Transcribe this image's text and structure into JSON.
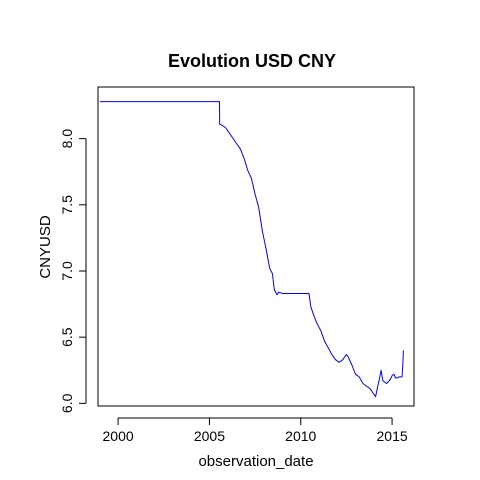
{
  "chart_data": {
    "type": "line",
    "title": "Evolution USD CNY",
    "xlabel": "observation_date",
    "ylabel": "CNYUSD",
    "xlim": [
      1998.9,
      2016.2
    ],
    "ylim": [
      5.98,
      8.39
    ],
    "x_ticks": [
      2000,
      2005,
      2010,
      2015
    ],
    "y_ticks": [
      6.0,
      6.5,
      7.0,
      7.5,
      8.0
    ],
    "x_tick_labels": [
      "2000",
      "2005",
      "2010",
      "2015"
    ],
    "y_tick_labels": [
      "6.0",
      "6.5",
      "7.0",
      "7.5",
      "8.0"
    ],
    "line_color": "#0000ff",
    "grid": false,
    "series": [
      {
        "x": [
          1999.0,
          2000.0,
          2001.0,
          2002.0,
          2003.0,
          2004.0,
          2005.0,
          2005.55,
          2005.56,
          2005.7,
          2005.9,
          2006.1,
          2006.3,
          2006.5,
          2006.7,
          2006.9,
          2007.1,
          2007.3,
          2007.5,
          2007.7,
          2007.9,
          2008.1,
          2008.3,
          2008.45,
          2008.55,
          2008.7,
          2008.8,
          2009.0,
          2009.5,
          2010.0,
          2010.45,
          2010.55,
          2010.7,
          2010.9,
          2011.1,
          2011.3,
          2011.5,
          2011.7,
          2011.9,
          2012.1,
          2012.3,
          2012.5,
          2012.6,
          2012.8,
          2013.0,
          2013.2,
          2013.4,
          2013.6,
          2013.8,
          2014.0,
          2014.1,
          2014.2,
          2014.3,
          2014.4,
          2014.5,
          2014.7,
          2014.9,
          2015.0,
          2015.1,
          2015.2,
          2015.4,
          2015.55,
          2015.6,
          2015.62
        ],
        "y": [
          8.28,
          8.28,
          8.28,
          8.28,
          8.28,
          8.28,
          8.28,
          8.28,
          8.11,
          8.1,
          8.08,
          8.04,
          8.0,
          7.96,
          7.92,
          7.85,
          7.76,
          7.7,
          7.58,
          7.48,
          7.3,
          7.17,
          7.02,
          6.98,
          6.86,
          6.82,
          6.84,
          6.83,
          6.83,
          6.83,
          6.83,
          6.73,
          6.67,
          6.6,
          6.55,
          6.47,
          6.42,
          6.37,
          6.33,
          6.31,
          6.33,
          6.37,
          6.35,
          6.29,
          6.22,
          6.2,
          6.15,
          6.13,
          6.11,
          6.07,
          6.05,
          6.12,
          6.18,
          6.25,
          6.17,
          6.15,
          6.18,
          6.21,
          6.22,
          6.19,
          6.2,
          6.2,
          6.32,
          6.4
        ]
      }
    ]
  }
}
